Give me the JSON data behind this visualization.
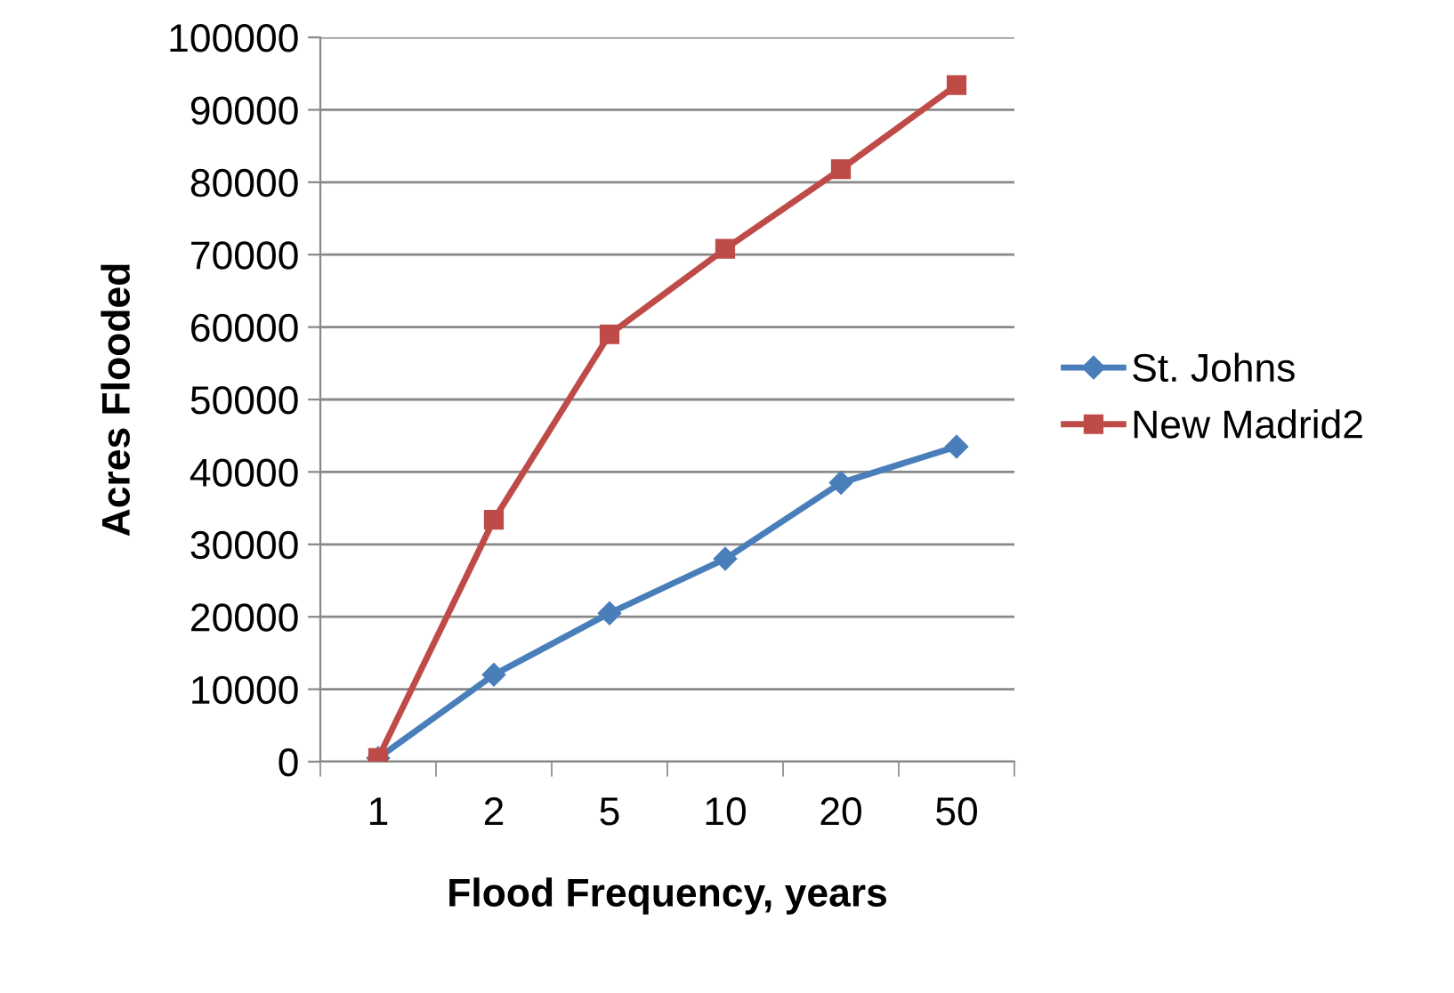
{
  "chart_data": {
    "type": "line",
    "xlabel": "Flood Frequency, years",
    "ylabel": "Acres Flooded",
    "categories": [
      "1",
      "2",
      "5",
      "10",
      "20",
      "50"
    ],
    "series": [
      {
        "name": "St. Johns",
        "color": "#4a7ebb",
        "marker": "diamond",
        "values": [
          500,
          12000,
          20500,
          28000,
          38500,
          43500
        ]
      },
      {
        "name": "New Madrid2",
        "color": "#be4b48",
        "marker": "square",
        "values": [
          500,
          33400,
          59000,
          70800,
          81800,
          93400
        ]
      }
    ],
    "ylim": [
      0,
      100000
    ],
    "yticks": [
      0,
      10000,
      20000,
      30000,
      40000,
      50000,
      60000,
      70000,
      80000,
      90000,
      100000
    ],
    "grid": "y",
    "legend": "right",
    "line_style": "solid"
  }
}
